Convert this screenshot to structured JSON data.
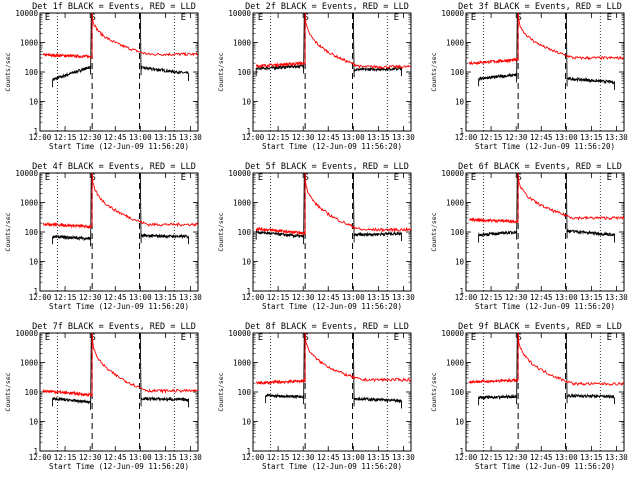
{
  "figure": {
    "xtick_labels": [
      "12:00",
      "12:15",
      "12:30",
      "12:45",
      "13:00",
      "13:15",
      "13:30"
    ],
    "ytick_labels": [
      "1",
      "10",
      "100",
      "1000",
      "10000"
    ],
    "ylabel": "Counts/sec",
    "xlabel": "Start Time (12-Jun-09 11:56:20)",
    "event_markers": {
      "start_label": "S",
      "end_label": "E",
      "left_label": "E",
      "right_label": "E"
    },
    "colors": {
      "events": "#000000",
      "lld": "#ff0000",
      "axes": "#000000"
    }
  },
  "chart_data": [
    {
      "type": "line",
      "title": "Det 1f BLACK = Events, RED = LLD",
      "yscale": "log",
      "ylim": [
        1,
        10000
      ],
      "xlim": [
        0,
        100
      ],
      "x_minutes_start": "12:00",
      "markers": {
        "dotted": [
          11,
          85
        ],
        "dashed": [
          33,
          63
        ]
      },
      "series": [
        {
          "name": "Events",
          "color": "#000000",
          "segments": [
            {
              "x": [
                8,
                32
              ],
              "y": [
                55,
                150
              ]
            },
            {
              "x": [
                64,
                94
              ],
              "y": [
                140,
                90
              ]
            }
          ]
        },
        {
          "name": "LLD",
          "color": "#ff0000",
          "segments": [
            {
              "x": [
                2,
                33
              ],
              "y": [
                380,
                330
              ]
            },
            {
              "x": [
                33,
                100
              ],
              "y": [
                12000,
                400
              ]
            }
          ]
        }
      ],
      "labels": [
        "E",
        "S",
        "E"
      ]
    },
    {
      "type": "line",
      "title": "Det 2f BLACK = Events, RED = LLD",
      "yscale": "log",
      "ylim": [
        1,
        10000
      ],
      "xlim": [
        0,
        100
      ],
      "markers": {
        "dotted": [
          11,
          85
        ],
        "dashed": [
          33,
          63
        ]
      },
      "series": [
        {
          "name": "Events",
          "color": "#000000",
          "segments": [
            {
              "x": [
                2,
                32
              ],
              "y": [
                130,
                160
              ]
            },
            {
              "x": [
                64,
                94
              ],
              "y": [
                120,
                130
              ]
            }
          ]
        },
        {
          "name": "LLD",
          "color": "#ff0000",
          "segments": [
            {
              "x": [
                2,
                33
              ],
              "y": [
                160,
                200
              ]
            },
            {
              "x": [
                33,
                100
              ],
              "y": [
                12000,
                150
              ]
            }
          ]
        }
      ],
      "labels": [
        "E",
        "S",
        "E"
      ]
    },
    {
      "type": "line",
      "title": "Det 3f BLACK = Events, RED = LLD",
      "yscale": "log",
      "ylim": [
        1,
        10000
      ],
      "xlim": [
        0,
        100
      ],
      "markers": {
        "dotted": [
          11,
          85
        ],
        "dashed": [
          33,
          63
        ]
      },
      "series": [
        {
          "name": "Events",
          "color": "#000000",
          "segments": [
            {
              "x": [
                8,
                32
              ],
              "y": [
                60,
                80
              ]
            },
            {
              "x": [
                64,
                94
              ],
              "y": [
                60,
                45
              ]
            }
          ]
        },
        {
          "name": "LLD",
          "color": "#ff0000",
          "segments": [
            {
              "x": [
                2,
                33
              ],
              "y": [
                200,
                260
              ]
            },
            {
              "x": [
                33,
                100
              ],
              "y": [
                12000,
                300
              ]
            }
          ]
        }
      ],
      "labels": [
        "E",
        "S",
        "E"
      ]
    },
    {
      "type": "line",
      "title": "Det 4f BLACK = Events, RED = LLD",
      "yscale": "log",
      "ylim": [
        1,
        10000
      ],
      "xlim": [
        0,
        100
      ],
      "markers": {
        "dotted": [
          11,
          85
        ],
        "dashed": [
          33,
          63
        ]
      },
      "series": [
        {
          "name": "Events",
          "color": "#000000",
          "segments": [
            {
              "x": [
                8,
                32
              ],
              "y": [
                70,
                60
              ]
            },
            {
              "x": [
                64,
                94
              ],
              "y": [
                75,
                70
              ]
            }
          ]
        },
        {
          "name": "LLD",
          "color": "#ff0000",
          "segments": [
            {
              "x": [
                2,
                33
              ],
              "y": [
                190,
                150
              ]
            },
            {
              "x": [
                33,
                100
              ],
              "y": [
                12000,
                180
              ]
            }
          ]
        }
      ],
      "labels": [
        "E",
        "S",
        "E"
      ]
    },
    {
      "type": "line",
      "title": "Det 5f BLACK = Events, RED = LLD",
      "yscale": "log",
      "ylim": [
        1,
        10000
      ],
      "xlim": [
        0,
        100
      ],
      "markers": {
        "dotted": [
          11,
          85
        ],
        "dashed": [
          33,
          63
        ]
      },
      "series": [
        {
          "name": "Events",
          "color": "#000000",
          "segments": [
            {
              "x": [
                2,
                32
              ],
              "y": [
                100,
                70
              ]
            },
            {
              "x": [
                64,
                94
              ],
              "y": [
                80,
                90
              ]
            }
          ]
        },
        {
          "name": "LLD",
          "color": "#ff0000",
          "segments": [
            {
              "x": [
                2,
                33
              ],
              "y": [
                130,
                90
              ]
            },
            {
              "x": [
                33,
                100
              ],
              "y": [
                12000,
                120
              ]
            }
          ]
        }
      ],
      "labels": [
        "E",
        "S",
        "E"
      ]
    },
    {
      "type": "line",
      "title": "Det 6f BLACK = Events, RED = LLD",
      "yscale": "log",
      "ylim": [
        1,
        10000
      ],
      "xlim": [
        0,
        100
      ],
      "markers": {
        "dotted": [
          11,
          85
        ],
        "dashed": [
          33,
          63
        ]
      },
      "series": [
        {
          "name": "Events",
          "color": "#000000",
          "segments": [
            {
              "x": [
                8,
                32
              ],
              "y": [
                80,
                100
              ]
            },
            {
              "x": [
                64,
                94
              ],
              "y": [
                110,
                80
              ]
            }
          ]
        },
        {
          "name": "LLD",
          "color": "#ff0000",
          "segments": [
            {
              "x": [
                2,
                33
              ],
              "y": [
                260,
                230
              ]
            },
            {
              "x": [
                33,
                100
              ],
              "y": [
                12000,
                300
              ]
            }
          ]
        }
      ],
      "labels": [
        "E",
        "S",
        "E"
      ]
    },
    {
      "type": "line",
      "title": "Det 7f BLACK = Events, RED = LLD",
      "yscale": "log",
      "ylim": [
        1,
        10000
      ],
      "xlim": [
        0,
        100
      ],
      "markers": {
        "dotted": [
          11,
          85
        ],
        "dashed": [
          33,
          63
        ]
      },
      "series": [
        {
          "name": "Events",
          "color": "#000000",
          "segments": [
            {
              "x": [
                8,
                32
              ],
              "y": [
                60,
                45
              ]
            },
            {
              "x": [
                64,
                94
              ],
              "y": [
                60,
                55
              ]
            }
          ]
        },
        {
          "name": "LLD",
          "color": "#ff0000",
          "segments": [
            {
              "x": [
                2,
                33
              ],
              "y": [
                110,
                80
              ]
            },
            {
              "x": [
                33,
                100
              ],
              "y": [
                12000,
                110
              ]
            }
          ]
        }
      ],
      "labels": [
        "E",
        "S",
        "E"
      ]
    },
    {
      "type": "line",
      "title": "Det 8f BLACK = Events, RED = LLD",
      "yscale": "log",
      "ylim": [
        1,
        10000
      ],
      "xlim": [
        0,
        100
      ],
      "markers": {
        "dotted": [
          11,
          85
        ],
        "dashed": [
          33,
          63
        ]
      },
      "series": [
        {
          "name": "Events",
          "color": "#000000",
          "segments": [
            {
              "x": [
                8,
                32
              ],
              "y": [
                75,
                70
              ]
            },
            {
              "x": [
                64,
                94
              ],
              "y": [
                60,
                50
              ]
            }
          ]
        },
        {
          "name": "LLD",
          "color": "#ff0000",
          "segments": [
            {
              "x": [
                2,
                33
              ],
              "y": [
                200,
                240
              ]
            },
            {
              "x": [
                33,
                100
              ],
              "y": [
                12000,
                260
              ]
            }
          ]
        }
      ],
      "labels": [
        "E",
        "S",
        "E"
      ]
    },
    {
      "type": "line",
      "title": "Det 9f BLACK = Events, RED = LLD",
      "yscale": "log",
      "ylim": [
        1,
        10000
      ],
      "xlim": [
        0,
        100
      ],
      "markers": {
        "dotted": [
          11,
          85
        ],
        "dashed": [
          33,
          63
        ]
      },
      "series": [
        {
          "name": "Events",
          "color": "#000000",
          "segments": [
            {
              "x": [
                8,
                32
              ],
              "y": [
                65,
                70
              ]
            },
            {
              "x": [
                64,
                94
              ],
              "y": [
                75,
                70
              ]
            }
          ]
        },
        {
          "name": "LLD",
          "color": "#ff0000",
          "segments": [
            {
              "x": [
                2,
                33
              ],
              "y": [
                220,
                250
              ]
            },
            {
              "x": [
                33,
                100
              ],
              "y": [
                12000,
                190
              ]
            }
          ]
        }
      ],
      "labels": [
        "E",
        "S",
        "E"
      ]
    }
  ]
}
